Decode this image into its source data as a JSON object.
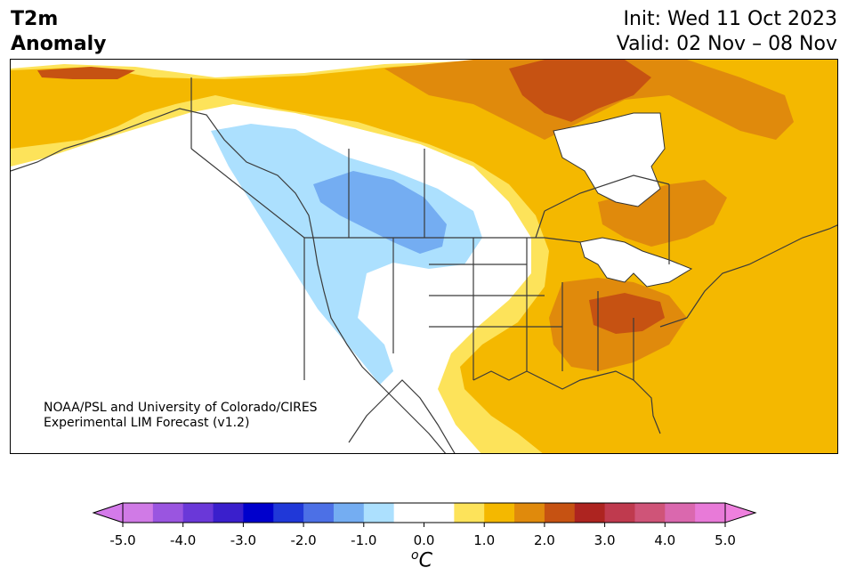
{
  "title": {
    "line1": "T2m",
    "line2": "Anomaly"
  },
  "init": {
    "line1": "Init: Wed 11 Oct 2023",
    "line2": "Valid: 02 Nov – 08 Nov"
  },
  "credit": {
    "line1": "NOAA/PSL and University of Colorado/CIRES",
    "line2": "Experimental LIM Forecast (v1.2)"
  },
  "colorbar": {
    "unit_base": "C",
    "unit_sup": "o",
    "ticks": [
      "-5.0",
      "-4.0",
      "-3.0",
      "-2.0",
      "-1.0",
      "0.0",
      "1.0",
      "2.0",
      "3.0",
      "4.0",
      "5.0"
    ],
    "colors": [
      "#d07ae6",
      "#9a55e0",
      "#6a38d8",
      "#3a1fcc",
      "#0000cc",
      "#2038d8",
      "#4c70e6",
      "#74adf2",
      "#ace0fe",
      "#ffffff",
      "#ffffff",
      "#fde35a",
      "#f4b800",
      "#e08a0c",
      "#c65212",
      "#ad2420",
      "#bf3a4e",
      "#cf5478",
      "#da68ae",
      "#e87ad8"
    ],
    "under_color": "#d47aea",
    "over_color": "#ee80de"
  }
}
